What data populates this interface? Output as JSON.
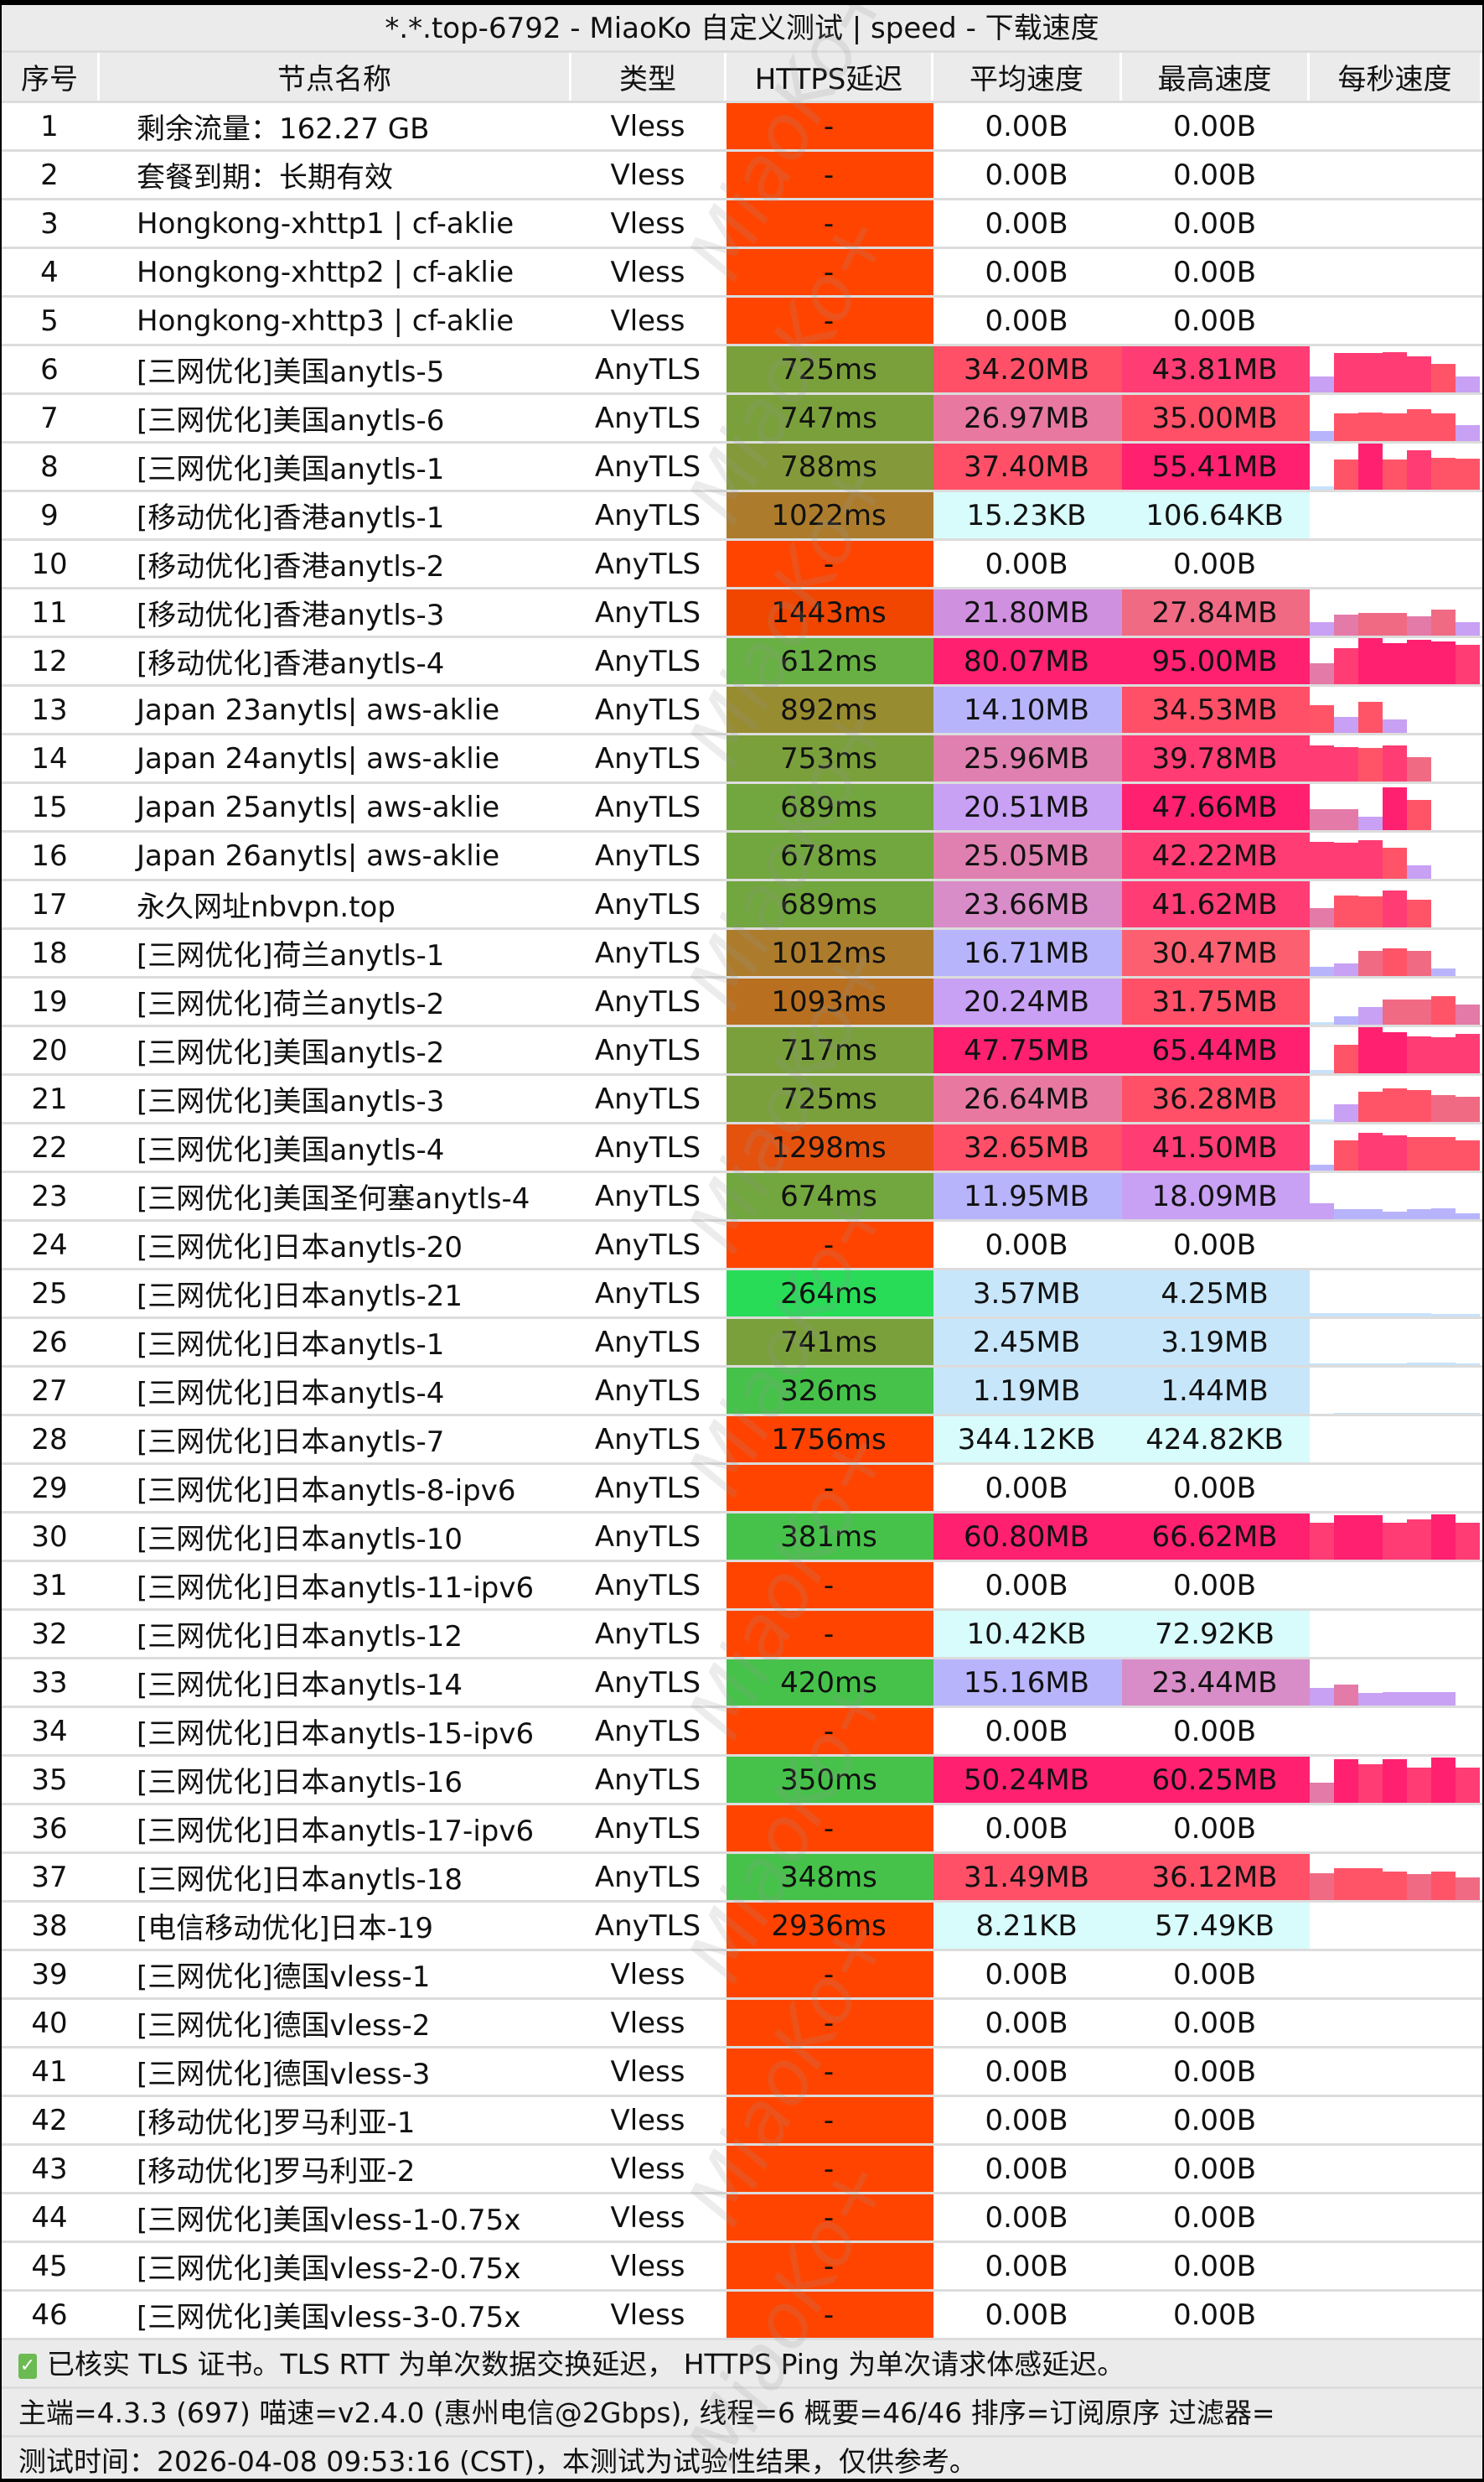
{
  "title": "*.*.top-6792 - MiaoKo 自定义测试 | speed - 下载速度",
  "headers": [
    "序号",
    "节点名称",
    "类型",
    "HTTPS延迟",
    "平均速度",
    "最高速度",
    "每秒速度"
  ],
  "rows": [
    [
      "1",
      "剩余流量：162.27 GB",
      "Vless",
      "-",
      "0.00B",
      "0.00B",
      []
    ],
    [
      "2",
      "套餐到期：长期有效",
      "Vless",
      "-",
      "0.00B",
      "0.00B",
      []
    ],
    [
      "3",
      "Hongkong-xhttp1 | cf-aklie",
      "Vless",
      "-",
      "0.00B",
      "0.00B",
      []
    ],
    [
      "4",
      "Hongkong-xhttp2  | cf-aklie",
      "Vless",
      "-",
      "0.00B",
      "0.00B",
      []
    ],
    [
      "5",
      "Hongkong-xhttp3  | cf-aklie",
      "Vless",
      "-",
      "0.00B",
      "0.00B",
      []
    ],
    [
      "6",
      "[三网优化]美国anytls-5",
      "AnyTLS",
      "725ms",
      "34.20MB",
      "43.81MB",
      [
        0.35,
        0.85,
        0.85,
        0.88,
        0.78,
        0.62,
        0.35
      ]
    ],
    [
      "7",
      "[三网优化]美国anytls-6",
      "AnyTLS",
      "747ms",
      "26.97MB",
      "35.00MB",
      [
        0.22,
        0.6,
        0.62,
        0.6,
        0.7,
        0.6,
        0.35
      ]
    ],
    [
      "8",
      "[三网优化]美国anytls-1",
      "AnyTLS",
      "788ms",
      "37.40MB",
      "55.41MB",
      [
        0.08,
        0.65,
        1.0,
        0.65,
        0.85,
        0.7,
        0.68
      ]
    ],
    [
      "9",
      "[移动优化]香港anytls-1",
      "AnyTLS",
      "1022ms",
      "15.23KB",
      "106.64KB",
      []
    ],
    [
      "10",
      "[移动优化]香港anytls-2",
      "AnyTLS",
      "-",
      "0.00B",
      "0.00B",
      []
    ],
    [
      "11",
      "[移动优化]香港anytls-3",
      "AnyTLS",
      "1443ms",
      "21.80MB",
      "27.84MB",
      [
        0.3,
        0.45,
        0.5,
        0.5,
        0.42,
        0.57,
        0.3
      ]
    ],
    [
      "12",
      "[移动优化]香港anytls-4",
      "AnyTLS",
      "612ms",
      "80.07MB",
      "95.00MB",
      [
        0.45,
        0.78,
        1.0,
        0.9,
        0.96,
        0.92,
        0.85
      ]
    ],
    [
      "13",
      "Japan 23anytls| aws-aklie",
      "AnyTLS",
      "892ms",
      "14.10MB",
      "34.53MB",
      [
        0.6,
        0.35,
        0.68,
        0.3,
        0,
        0,
        0
      ]
    ],
    [
      "14",
      "Japan 24anytls| aws-aklie",
      "AnyTLS",
      "753ms",
      "25.96MB",
      "39.78MB",
      [
        0.78,
        0.75,
        0.73,
        0.78,
        0.53,
        0,
        0
      ]
    ],
    [
      "15",
      "Japan 25anytls| aws-aklie",
      "AnyTLS",
      "689ms",
      "20.51MB",
      "47.66MB",
      [
        0.45,
        0.45,
        0.3,
        0.93,
        0.65,
        0,
        0
      ]
    ],
    [
      "16",
      "Japan 26anytls| aws-aklie",
      "AnyTLS",
      "678ms",
      "25.05MB",
      "42.22MB",
      [
        0.8,
        0.78,
        0.83,
        0.68,
        0.3,
        0,
        0
      ]
    ],
    [
      "17",
      "永久网址nbvpn.top",
      "AnyTLS",
      "689ms",
      "23.66MB",
      "41.62MB",
      [
        0.42,
        0.7,
        0.68,
        0.8,
        0.6,
        0,
        0
      ]
    ],
    [
      "18",
      "[三网优化]荷兰anytls-1",
      "AnyTLS",
      "1012ms",
      "16.71MB",
      "30.47MB",
      [
        0.2,
        0.28,
        0.55,
        0.6,
        0.55,
        0.16,
        0
      ]
    ],
    [
      "19",
      "[三网优化]荷兰anytls-2",
      "AnyTLS",
      "1093ms",
      "20.24MB",
      "31.75MB",
      [
        0.05,
        0.18,
        0.38,
        0.55,
        0.55,
        0.62,
        0.43
      ]
    ],
    [
      "20",
      "[三网优化]美国anytls-2",
      "AnyTLS",
      "717ms",
      "47.75MB",
      "65.44MB",
      [
        0.07,
        0.62,
        1.0,
        0.9,
        0.8,
        0.78,
        0.85
      ]
    ],
    [
      "21",
      "[三网优化]美国anytls-3",
      "AnyTLS",
      "725ms",
      "26.64MB",
      "36.28MB",
      [
        0.05,
        0.38,
        0.65,
        0.72,
        0.7,
        0.58,
        0.55
      ]
    ],
    [
      "22",
      "[三网优化]美国anytls-4",
      "AnyTLS",
      "1298ms",
      "32.65MB",
      "41.50MB",
      [
        0.12,
        0.65,
        0.82,
        0.77,
        0.73,
        0.73,
        0.65
      ]
    ],
    [
      "23",
      "[三网优化]美国圣何塞anytls-4",
      "AnyTLS",
      "674ms",
      "11.95MB",
      "18.09MB",
      [
        0.35,
        0.22,
        0.22,
        0.17,
        0.22,
        0.24,
        0.13
      ]
    ],
    [
      "24",
      "[三网优化]日本anytls-20",
      "AnyTLS",
      "-",
      "0.00B",
      "0.00B",
      []
    ],
    [
      "25",
      "[三网优化]日本anytls-21",
      "AnyTLS",
      "264ms",
      "3.57MB",
      "4.25MB",
      [
        0.07,
        0.08,
        0.08,
        0.08,
        0.08,
        0.06,
        0.05
      ]
    ],
    [
      "26",
      "[三网优化]日本anytls-1",
      "AnyTLS",
      "741ms",
      "2.45MB",
      "3.19MB",
      [
        0.03,
        0.03,
        0.03,
        0.03,
        0.05,
        0.05,
        0.03
      ]
    ],
    [
      "27",
      "[三网优化]日本anytls-4",
      "AnyTLS",
      "326ms",
      "1.19MB",
      "1.44MB",
      [
        0,
        0.02,
        0.02,
        0.02,
        0.02,
        0.02,
        0.02
      ]
    ],
    [
      "28",
      "[三网优化]日本anytls-7",
      "AnyTLS",
      "1756ms",
      "344.12KB",
      "424.82KB",
      []
    ],
    [
      "29",
      "[三网优化]日本anytls-8-ipv6",
      "AnyTLS",
      "-",
      "0.00B",
      "0.00B",
      []
    ],
    [
      "30",
      "[三网优化]日本anytls-10",
      "AnyTLS",
      "381ms",
      "60.80MB",
      "66.62MB",
      [
        0.8,
        0.96,
        0.96,
        0.8,
        0.88,
        0.98,
        0.8
      ]
    ],
    [
      "31",
      "[三网优化]日本anytls-11-ipv6",
      "AnyTLS",
      "-",
      "0.00B",
      "0.00B",
      []
    ],
    [
      "32",
      "[三网优化]日本anytls-12",
      "AnyTLS",
      "-",
      "10.42KB",
      "72.92KB",
      []
    ],
    [
      "33",
      "[三网优化]日本anytls-14",
      "AnyTLS",
      "420ms",
      "15.16MB",
      "23.44MB",
      [
        0.38,
        0.45,
        0.27,
        0.29,
        0.29,
        0.29,
        0
      ]
    ],
    [
      "34",
      "[三网优化]日本anytls-15-ipv6",
      "AnyTLS",
      "-",
      "0.00B",
      "0.00B",
      []
    ],
    [
      "35",
      "[三网优化]日本anytls-16",
      "AnyTLS",
      "350ms",
      "50.24MB",
      "60.25MB",
      [
        0.44,
        0.95,
        0.83,
        0.95,
        0.76,
        0.98,
        0.77
      ]
    ],
    [
      "36",
      "[三网优化]日本anytls-17-ipv6",
      "AnyTLS",
      "-",
      "0.00B",
      "0.00B",
      []
    ],
    [
      "37",
      "[三网优化]日本anytls-18",
      "AnyTLS",
      "348ms",
      "31.49MB",
      "36.12MB",
      [
        0.58,
        0.7,
        0.7,
        0.61,
        0.56,
        0.61,
        0.5
      ]
    ],
    [
      "38",
      "[电信移动优化]日本-19",
      "AnyTLS",
      "2936ms",
      "8.21KB",
      "57.49KB",
      []
    ],
    [
      "39",
      "[三网优化]德国vless-1",
      "Vless",
      "-",
      "0.00B",
      "0.00B",
      []
    ],
    [
      "40",
      "[三网优化]德国vless-2",
      "Vless",
      "-",
      "0.00B",
      "0.00B",
      []
    ],
    [
      "41",
      "[三网优化]德国vless-3",
      "Vless",
      "-",
      "0.00B",
      "0.00B",
      []
    ],
    [
      "42",
      "[移动优化]罗马利亚-1",
      "Vless",
      "-",
      "0.00B",
      "0.00B",
      []
    ],
    [
      "43",
      "[移动优化]罗马利亚-2",
      "Vless",
      "-",
      "0.00B",
      "0.00B",
      []
    ],
    [
      "44",
      "[三网优化]美国vless-1-0.75x",
      "Vless",
      "-",
      "0.00B",
      "0.00B",
      []
    ],
    [
      "45",
      "[三网优化]美国vless-2-0.75x",
      "Vless",
      "-",
      "0.00B",
      "0.00B",
      []
    ],
    [
      "46",
      "[三网优化]美国vless-3-0.75x",
      "Vless",
      "-",
      "0.00B",
      "0.00B",
      []
    ]
  ],
  "footer": {
    "check_icon": "✓",
    "line1": "已核实 TLS 证书。TLS RTT 为单次数据交换延迟， HTTPS Ping 为单次请求体感延迟。",
    "line2": "主端=4.3.3 (697) 喵速=v2.4.0 (惠州电信@2Gbps), 线程=6 概要=46/46 排序=订阅原序 过滤器=",
    "line3": "测试时间：2026-04-08 09:53:16 (CST)，本测试为试验性结果，仅供参考。"
  },
  "watermark": "MiaoKo+",
  "colors": {
    "latency_fail": "#ff4400",
    "latency_scale": [
      [
        300,
        "#28dc58"
      ],
      [
        450,
        "#46c24a"
      ],
      [
        650,
        "#68b044"
      ],
      [
        700,
        "#72a63e"
      ],
      [
        760,
        "#7aa03c"
      ],
      [
        850,
        "#849a3a"
      ],
      [
        950,
        "#988c30"
      ],
      [
        1050,
        "#ac7c2c"
      ],
      [
        1200,
        "#b87020"
      ],
      [
        1350,
        "#e4520e"
      ],
      [
        1600,
        "#f04600"
      ],
      [
        99999,
        "#ff4200"
      ]
    ],
    "speed_scale": [
      [
        0.0001,
        "#ffffff"
      ],
      [
        1,
        "#d8fcfc"
      ],
      [
        6,
        "#c8e6fa"
      ],
      [
        18,
        "#b8b4fc"
      ],
      [
        21,
        "#c8a0f4"
      ],
      [
        23,
        "#d090e0"
      ],
      [
        25,
        "#d88cc8"
      ],
      [
        26,
        "#e080b0"
      ],
      [
        27.5,
        "#e878a0"
      ],
      [
        29,
        "#f06a84"
      ],
      [
        31,
        "#fc6070"
      ],
      [
        38,
        "#ff5068"
      ],
      [
        45,
        "#ff3c74"
      ],
      [
        99999,
        "#ff2070"
      ]
    ],
    "bar_scale": [
      [
        0.1,
        "#c8e2fa"
      ],
      [
        0.25,
        "#b8b4fc"
      ],
      [
        0.4,
        "#c8a0f4"
      ],
      [
        0.5,
        "#e47aa8"
      ],
      [
        0.6,
        "#f06a84"
      ],
      [
        0.75,
        "#ff5468"
      ],
      [
        0.9,
        "#ff3c74"
      ],
      [
        9,
        "#ff2070"
      ]
    ]
  }
}
